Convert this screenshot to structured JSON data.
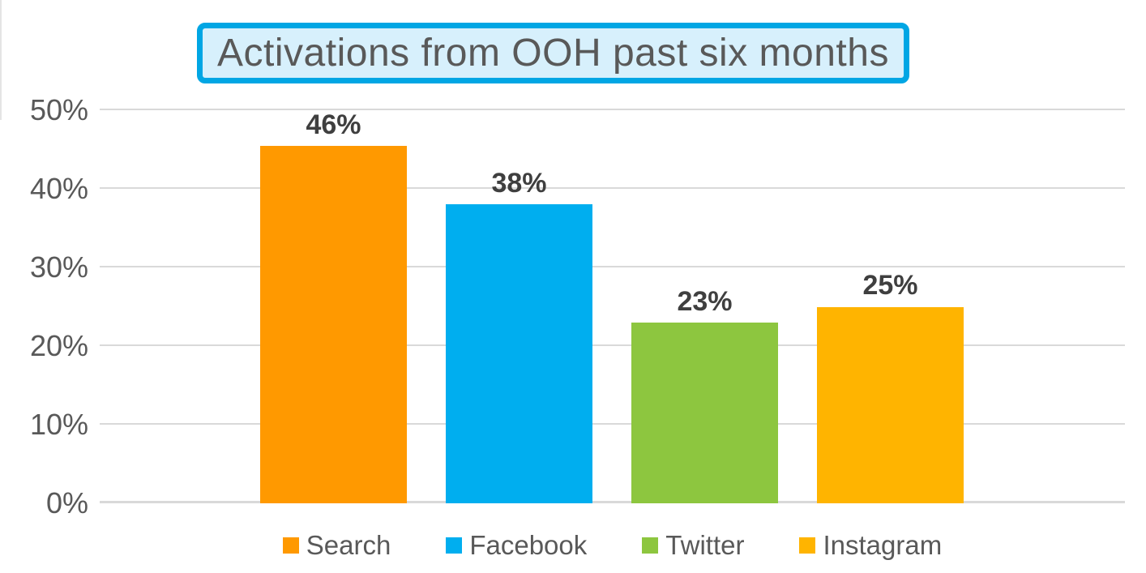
{
  "chart_data": {
    "type": "bar",
    "title": "Activations from OOH past six months",
    "categories": [
      "Search",
      "Facebook",
      "Twitter",
      "Instagram"
    ],
    "values": [
      46,
      38,
      23,
      25
    ],
    "value_labels": [
      "46%",
      "38%",
      "23%",
      "25%"
    ],
    "bar_colors": [
      "#FF9900",
      "#00AEEF",
      "#8DC63F",
      "#FFB400"
    ],
    "xlabel": "",
    "ylabel": "",
    "ylim": [
      0,
      50
    ],
    "ytick_labels": [
      "0%",
      "10%",
      "20%",
      "30%",
      "40%",
      "50%"
    ],
    "grid": true,
    "legend_position": "bottom",
    "legend": [
      {
        "label": "Search",
        "color": "#FF9900"
      },
      {
        "label": "Facebook",
        "color": "#00AEEF"
      },
      {
        "label": "Twitter",
        "color": "#8DC63F"
      },
      {
        "label": "Instagram",
        "color": "#FFB400"
      }
    ],
    "styles": {
      "background": "#FFFFFF",
      "title_border_color": "#00A6E4",
      "title_bg_color": "#D7F0FC",
      "title_text_color": "#595959",
      "axis_text_color": "#595959",
      "value_label_color": "#3F3F3F",
      "gridline_color": "#D9D9D9"
    }
  }
}
